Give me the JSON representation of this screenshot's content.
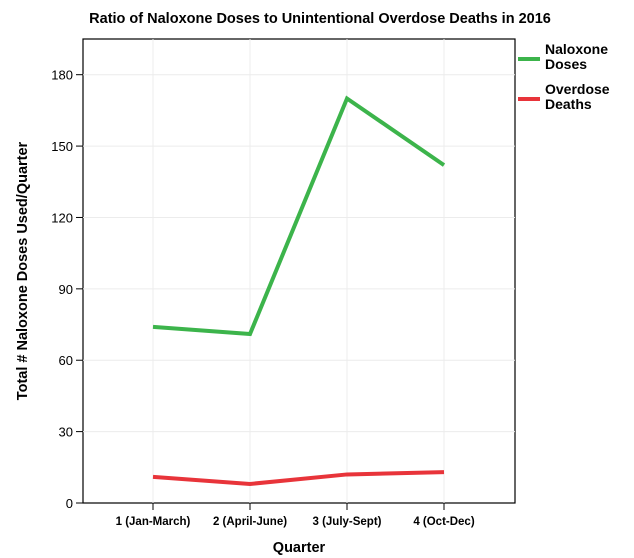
{
  "chart_data": {
    "type": "line",
    "title": "Ratio of Naloxone Doses to Unintentional Overdose Deaths in 2016",
    "xlabel": "Quarter",
    "ylabel": "Total # Naloxone Doses Used/Quarter",
    "categories": [
      "1 (Jan-March)",
      "2 (April-June)",
      "3 (July-Sept)",
      "4 (Oct-Dec)"
    ],
    "y_ticks": [
      0,
      30,
      60,
      90,
      120,
      150,
      180
    ],
    "ylim": [
      0,
      195
    ],
    "grid": true,
    "legend_position": "top-right",
    "series": [
      {
        "name_lines": [
          "Naloxone",
          "Doses"
        ],
        "color": "#3cb44b",
        "values": [
          74,
          71,
          170,
          142
        ]
      },
      {
        "name_lines": [
          "Overdose",
          "Deaths"
        ],
        "color": "#e8343a",
        "values": [
          11,
          8,
          12,
          13
        ]
      }
    ]
  }
}
